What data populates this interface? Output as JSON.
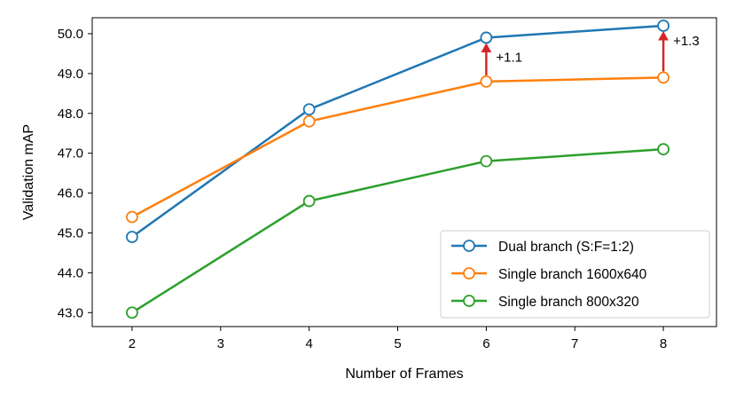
{
  "chart_data": {
    "type": "line",
    "title": "",
    "xlabel": "Number of Frames",
    "ylabel": "Validation mAP",
    "xlim": [
      1.55,
      8.6
    ],
    "ylim": [
      42.65,
      50.4
    ],
    "xticks": [
      2,
      3,
      4,
      5,
      6,
      7,
      8
    ],
    "xtick_labels": [
      "2",
      "3",
      "4",
      "5",
      "6",
      "7",
      "8"
    ],
    "yticks": [
      43,
      44,
      45,
      46,
      47,
      48,
      49,
      50
    ],
    "ytick_labels": [
      "43.0",
      "44.0",
      "45.0",
      "46.0",
      "47.0",
      "48.0",
      "49.0",
      "50.0"
    ],
    "grid": false,
    "legend_position": "lower-right",
    "series": [
      {
        "name": "Dual branch (S:F=1:2)",
        "color": "#1f77b4",
        "x": [
          2,
          4,
          6,
          8
        ],
        "y": [
          44.9,
          48.1,
          49.9,
          50.2
        ]
      },
      {
        "name": "Single branch 1600x640",
        "color": "#ff7f0e",
        "x": [
          2,
          4,
          6,
          8
        ],
        "y": [
          45.4,
          47.8,
          48.8,
          48.9
        ]
      },
      {
        "name": "Single branch 800x320",
        "color": "#2ca02c",
        "x": [
          2,
          4,
          6,
          8
        ],
        "y": [
          43.0,
          45.8,
          46.8,
          47.1
        ]
      }
    ],
    "annotations": [
      {
        "text": "+1.1",
        "x": 6,
        "from": 48.8,
        "to": 49.9,
        "color": "#d62728"
      },
      {
        "text": "+1.3",
        "x": 8,
        "from": 48.9,
        "to": 50.2,
        "color": "#d62728"
      }
    ]
  }
}
